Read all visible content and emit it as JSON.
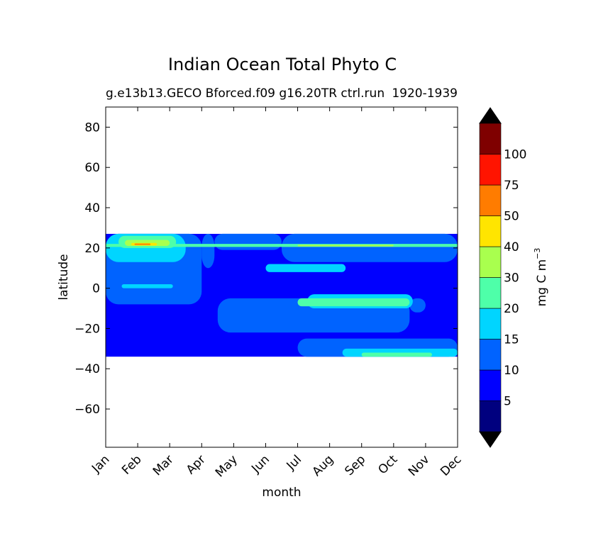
{
  "chart_data": {
    "type": "heatmap",
    "title": "Indian Ocean Total Phyto C",
    "subtitle_left": "g.e13b13.GECO Bforced.f09 g16.20TR ctrl.run",
    "subtitle_right": "1920-1939",
    "xlabel": "month",
    "ylabel": "latitude",
    "x_ticks": [
      "Jan",
      "Feb",
      "Mar",
      "Apr",
      "May",
      "Jun",
      "Jul",
      "Aug",
      "Sep",
      "Oct",
      "Nov",
      "Dec"
    ],
    "y_ticks": [
      80,
      60,
      40,
      20,
      0,
      -20,
      -40,
      -60
    ],
    "ylim": [
      -79,
      90
    ],
    "data_lat_range": [
      -34,
      27
    ],
    "colorbar": {
      "label": "mg C m",
      "label_exponent": "−3",
      "levels": [
        5,
        10,
        15,
        20,
        30,
        40,
        50,
        75,
        100
      ],
      "tick_labels": [
        "5",
        "10",
        "15",
        "20",
        "30",
        "40",
        "50",
        "75",
        "100"
      ],
      "colors": [
        "#00007f",
        "#0000ff",
        "#0063ff",
        "#00d5ff",
        "#4effa9",
        "#a9ff4e",
        "#ffe500",
        "#ff7c00",
        "#ff1400",
        "#7f0000"
      ],
      "extend": "both",
      "under_color": "#000000",
      "over_color": "#000000"
    },
    "regions": [
      {
        "level_index": 1,
        "month": [
          0,
          11
        ],
        "lat": [
          -34,
          27
        ]
      },
      {
        "level_index": 2,
        "month": [
          0,
          3.0
        ],
        "lat": [
          -8,
          27
        ]
      },
      {
        "level_index": 2,
        "month": [
          3.0,
          3.4
        ],
        "lat": [
          10,
          27
        ]
      },
      {
        "level_index": 2,
        "month": [
          3.4,
          5.5
        ],
        "lat": [
          19,
          27
        ]
      },
      {
        "level_index": 2,
        "month": [
          5.5,
          11
        ],
        "lat": [
          13,
          27
        ]
      },
      {
        "level_index": 2,
        "month": [
          3.5,
          9.5
        ],
        "lat": [
          -22,
          -5
        ]
      },
      {
        "level_index": 2,
        "month": [
          9.5,
          10.0
        ],
        "lat": [
          -12,
          -5
        ]
      },
      {
        "level_index": 2,
        "month": [
          6.0,
          11
        ],
        "lat": [
          -34,
          -25
        ]
      },
      {
        "level_index": 3,
        "month": [
          0,
          2.5
        ],
        "lat": [
          13,
          27
        ]
      },
      {
        "level_index": 3,
        "month": [
          0.5,
          2.1
        ],
        "lat": [
          0,
          2
        ]
      },
      {
        "level_index": 3,
        "month": [
          5.0,
          7.5
        ],
        "lat": [
          8,
          12
        ]
      },
      {
        "level_index": 3,
        "month": [
          6.3,
          9.6
        ],
        "lat": [
          -10,
          -3
        ]
      },
      {
        "level_index": 3,
        "month": [
          7.4,
          11
        ],
        "lat": [
          -34,
          -30
        ]
      },
      {
        "level_index": 4,
        "month": [
          0.4,
          2.2
        ],
        "lat": [
          20,
          26
        ]
      },
      {
        "level_index": 4,
        "month": [
          0,
          11
        ],
        "lat": [
          20.5,
          22
        ]
      },
      {
        "level_index": 4,
        "month": [
          6.0,
          9.5
        ],
        "lat": [
          -9,
          -5
        ]
      },
      {
        "level_index": 4,
        "month": [
          8.0,
          10.2
        ],
        "lat": [
          -34,
          -32
        ]
      },
      {
        "level_index": 5,
        "month": [
          0.6,
          2.0
        ],
        "lat": [
          21,
          24
        ]
      },
      {
        "level_index": 5,
        "month": [
          6.0,
          9.0
        ],
        "lat": [
          20.8,
          21.6
        ]
      },
      {
        "level_index": 6,
        "month": [
          0.8,
          1.6
        ],
        "lat": [
          21.2,
          22.5
        ]
      },
      {
        "level_index": 7,
        "month": [
          0.9,
          1.4
        ],
        "lat": [
          21.5,
          22.2
        ]
      }
    ]
  }
}
